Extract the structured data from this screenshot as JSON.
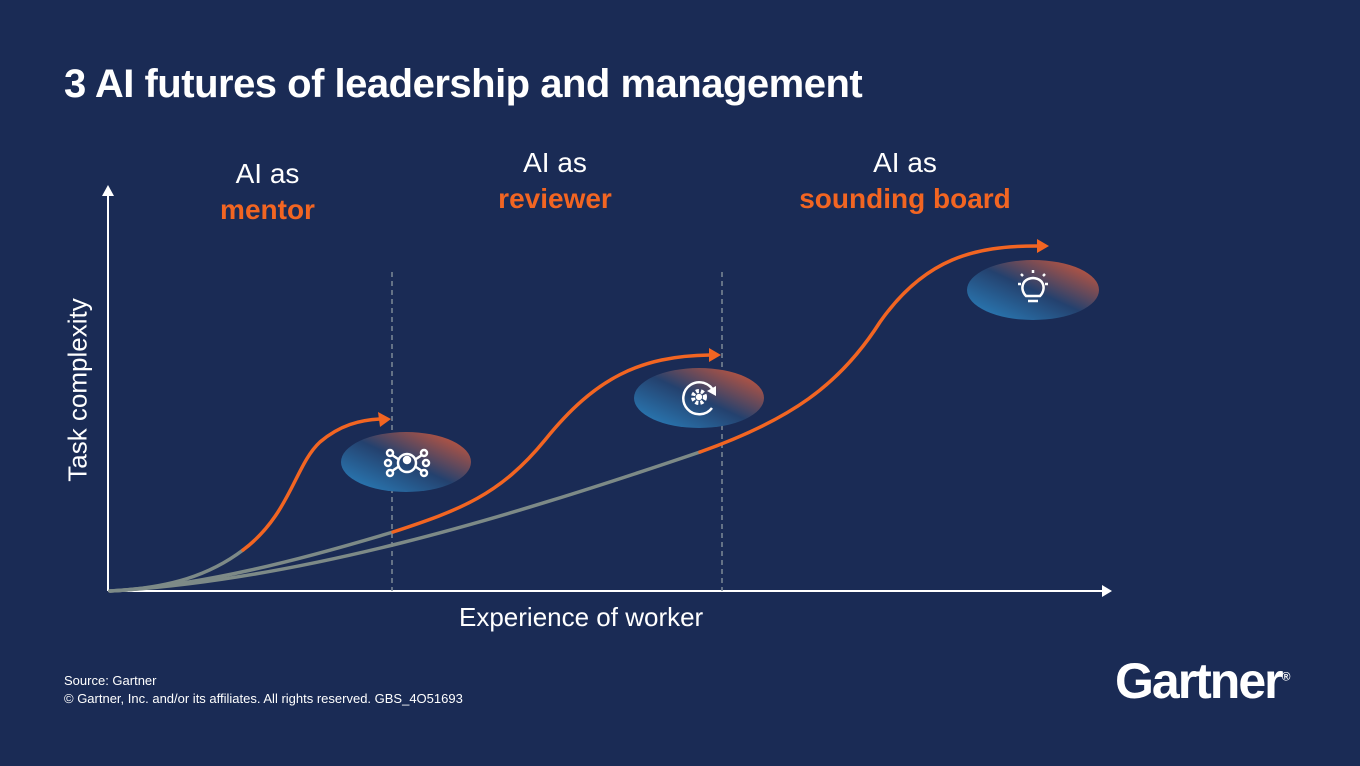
{
  "title": "3 AI futures of leadership and management",
  "stages": [
    {
      "prefix": "AI as",
      "role": "mentor",
      "icon": "network-people-icon"
    },
    {
      "prefix": "AI as",
      "role": "reviewer",
      "icon": "gear-refresh-icon"
    },
    {
      "prefix": "AI as",
      "role": "sounding board",
      "icon": "lightbulb-icon"
    }
  ],
  "axes": {
    "y_label": "Task complexity",
    "x_label": "Experience of worker"
  },
  "footer": {
    "source": "Source: Gartner",
    "copyright": "© Gartner, Inc. and/or its affiliates. All rights reserved. GBS_4O51693"
  },
  "logo": "Gartner",
  "colors": {
    "background": "#1a2b55",
    "accent": "#f26522",
    "baseline": "#7d8a87"
  }
}
